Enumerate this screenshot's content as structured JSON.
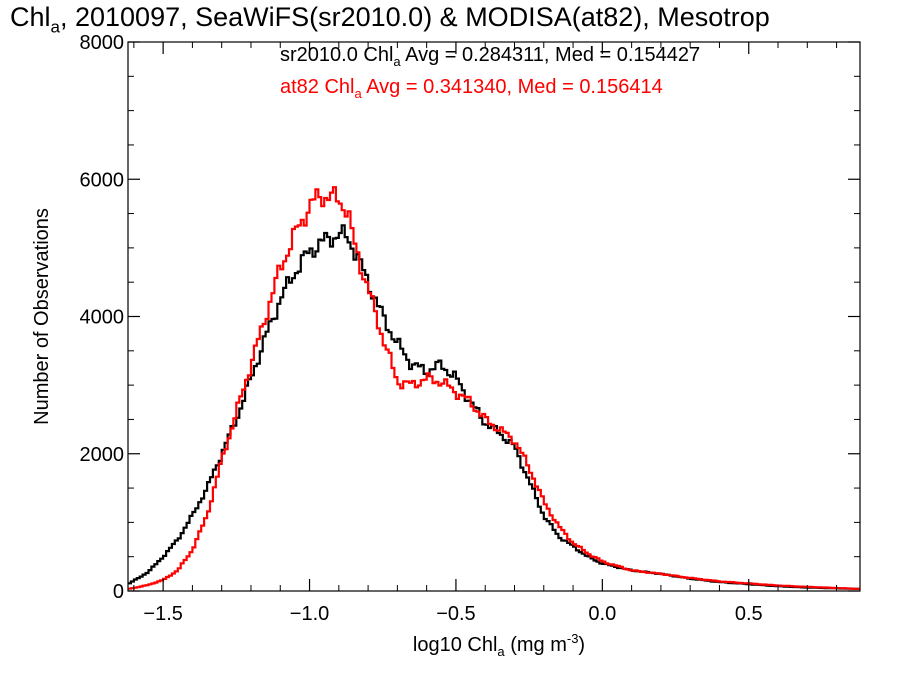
{
  "title": "Chl_a, 2010097, SeaWiFS(sr2010.0) & MODISA(at82), Mesotrop",
  "title_parts": [
    "Chl",
    "a",
    ", 2010097, SeaWiFS(sr2010.0) & MODISA(at82), Mesotrop"
  ],
  "chart_data": {
    "type": "line",
    "step": true,
    "xlabel": "log10 Chl_a (mg m^-3)",
    "xlabel_parts": [
      "log10 Chl",
      "a",
      " (mg m",
      "-3",
      ")"
    ],
    "ylabel": "Number of Observations",
    "xlim": [
      -1.62,
      0.88
    ],
    "ylim": [
      0,
      8000
    ],
    "xticks": [
      -1.5,
      -1.0,
      -0.5,
      0.0,
      0.5
    ],
    "xtick_labels": [
      "−1.5",
      "−1.0",
      "−0.5",
      "0.0",
      "0.5"
    ],
    "yticks": [
      0,
      2000,
      4000,
      6000,
      8000
    ],
    "ytick_labels": [
      "0",
      "2000",
      "4000",
      "6000",
      "8000"
    ],
    "series": [
      {
        "name": "sr2010.0",
        "color": "#000000",
        "x": [
          -1.62,
          -1.58,
          -1.55,
          -1.5,
          -1.45,
          -1.4,
          -1.35,
          -1.3,
          -1.25,
          -1.2,
          -1.15,
          -1.1,
          -1.05,
          -1.0,
          -0.95,
          -0.9,
          -0.87,
          -0.85,
          -0.8,
          -0.75,
          -0.7,
          -0.65,
          -0.6,
          -0.55,
          -0.5,
          -0.45,
          -0.4,
          -0.35,
          -0.3,
          -0.25,
          -0.2,
          -0.15,
          -0.1,
          -0.05,
          0.0,
          0.1,
          0.2,
          0.3,
          0.4,
          0.5,
          0.6,
          0.7,
          0.88
        ],
        "y": [
          100,
          200,
          280,
          500,
          750,
          1100,
          1500,
          2000,
          2500,
          3100,
          3700,
          4250,
          4650,
          4950,
          5100,
          5200,
          5150,
          5000,
          4500,
          4000,
          3600,
          3300,
          3200,
          3300,
          3100,
          2750,
          2450,
          2300,
          2100,
          1600,
          1100,
          800,
          650,
          500,
          400,
          300,
          250,
          180,
          130,
          100,
          70,
          50,
          30
        ],
        "avg": "0.284311",
        "med": "0.154427"
      },
      {
        "name": "at82",
        "color": "#ff0000",
        "x": [
          -1.62,
          -1.58,
          -1.55,
          -1.5,
          -1.45,
          -1.4,
          -1.35,
          -1.3,
          -1.25,
          -1.2,
          -1.15,
          -1.1,
          -1.05,
          -1.0,
          -0.97,
          -0.93,
          -0.9,
          -0.87,
          -0.85,
          -0.8,
          -0.75,
          -0.7,
          -0.65,
          -0.6,
          -0.55,
          -0.5,
          -0.45,
          -0.4,
          -0.35,
          -0.3,
          -0.25,
          -0.2,
          -0.15,
          -0.1,
          -0.05,
          0.0,
          0.1,
          0.2,
          0.3,
          0.4,
          0.5,
          0.6,
          0.7,
          0.88
        ],
        "y": [
          30,
          60,
          90,
          160,
          300,
          600,
          1100,
          1900,
          2600,
          3300,
          4000,
          4700,
          5200,
          5600,
          5750,
          5750,
          5700,
          5550,
          5100,
          4400,
          3700,
          3050,
          3000,
          3100,
          3050,
          2900,
          2750,
          2500,
          2350,
          2200,
          1800,
          1300,
          950,
          700,
          550,
          430,
          300,
          250,
          190,
          140,
          110,
          80,
          60,
          30
        ],
        "avg": "0.341340",
        "med": "0.156414"
      }
    ],
    "annotations": [
      {
        "series": "sr2010.0",
        "parts": [
          "sr2010.0 Chl",
          "a",
          " Avg = 0.284311, Med = 0.154427"
        ],
        "color": "#000000"
      },
      {
        "series": "at82",
        "parts": [
          "at82 Chl",
          "a",
          " Avg = 0.341340, Med = 0.156414"
        ],
        "color": "#ff0000"
      }
    ]
  }
}
